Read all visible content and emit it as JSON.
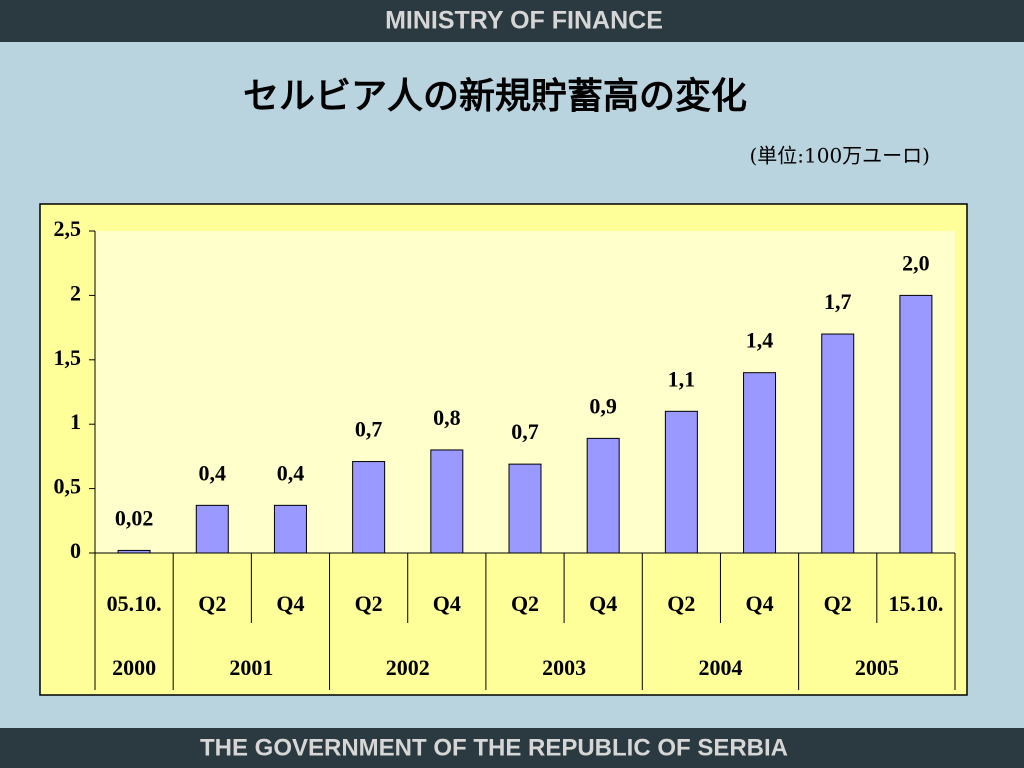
{
  "header": "MINISTRY OF FINANCE",
  "footer": "THE GOVERNMENT OF THE REPUBLIC OF SERBIA",
  "chart_data": {
    "type": "bar",
    "title": "セルビア人の新規貯蓄高の変化",
    "subtitle": "(単位:100万ユーロ)",
    "categories": [
      "05.10.",
      "Q2",
      "Q4",
      "Q2",
      "Q4",
      "Q2",
      "Q4",
      "Q2",
      "Q4",
      "Q2",
      "15.10."
    ],
    "groups": [
      {
        "name": "2000",
        "count": 1
      },
      {
        "name": "2001",
        "count": 2
      },
      {
        "name": "2002",
        "count": 2
      },
      {
        "name": "2003",
        "count": 2
      },
      {
        "name": "2004",
        "count": 2
      },
      {
        "name": "2005",
        "count": 2
      }
    ],
    "values": [
      0.02,
      0.37,
      0.37,
      0.71,
      0.8,
      0.69,
      0.89,
      1.1,
      1.4,
      1.7,
      2.0
    ],
    "value_labels": [
      "0,02",
      "0,4",
      "0,4",
      "0,7",
      "0,8",
      "0,7",
      "0,9",
      "1,1",
      "1,4",
      "1,7",
      "2,0"
    ],
    "color": "#9999ff",
    "ylim": [
      0,
      2.5
    ],
    "yticks": [
      0,
      {
        "value": 0.5,
        "label": "0,5"
      },
      1,
      {
        "value": 1.5,
        "label": "1,5"
      },
      2,
      {
        "value": 2.5,
        "label": "2,5"
      }
    ]
  }
}
